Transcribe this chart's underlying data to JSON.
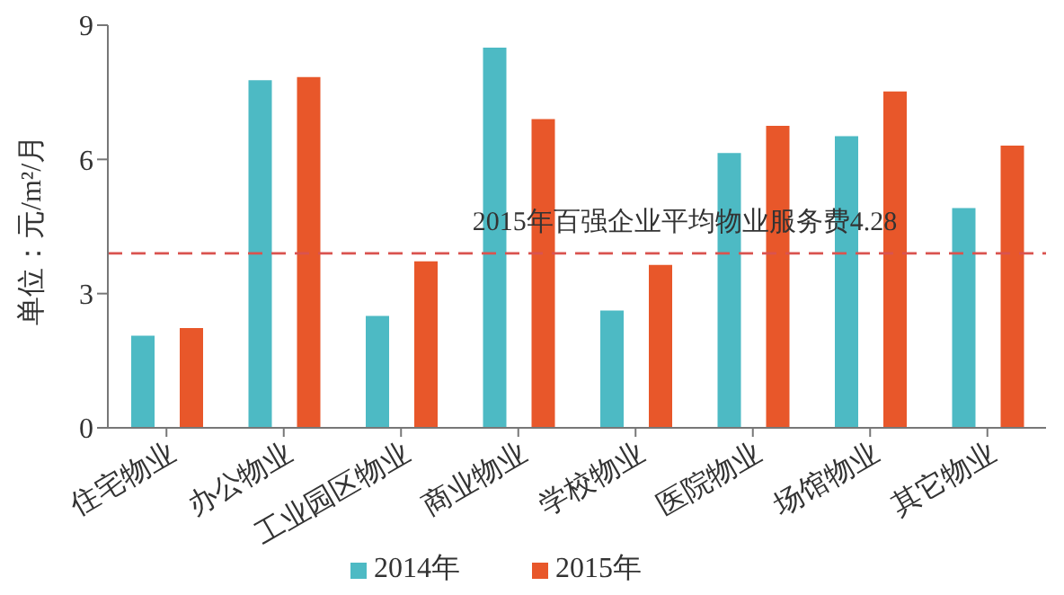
{
  "chart_data": {
    "type": "bar",
    "ylabel": "单位：元/m²/月",
    "categories": [
      "住宅物业",
      "办公物业",
      "工业园区物业",
      "商业物业",
      "学校物业",
      "医院物业",
      "场馆物业",
      "其它物业"
    ],
    "series": [
      {
        "name": "2014年",
        "color": "#4dbac4",
        "values": [
          2.06,
          7.77,
          2.5,
          8.5,
          2.62,
          6.14,
          6.52,
          4.91
        ]
      },
      {
        "name": "2015年",
        "color": "#e8572a",
        "values": [
          2.23,
          7.84,
          3.72,
          6.9,
          3.64,
          6.75,
          7.52,
          6.31
        ]
      }
    ],
    "ylim": [
      0,
      9
    ],
    "yticks": [
      0,
      3,
      6,
      9
    ],
    "grid": false,
    "legend": "bottom",
    "ref_lines": [
      {
        "axis": "y",
        "value": 3.9,
        "label": "2015年百强企业平均物业服务费4.28",
        "color": "#d9534f",
        "line_style": "dashed"
      }
    ]
  }
}
